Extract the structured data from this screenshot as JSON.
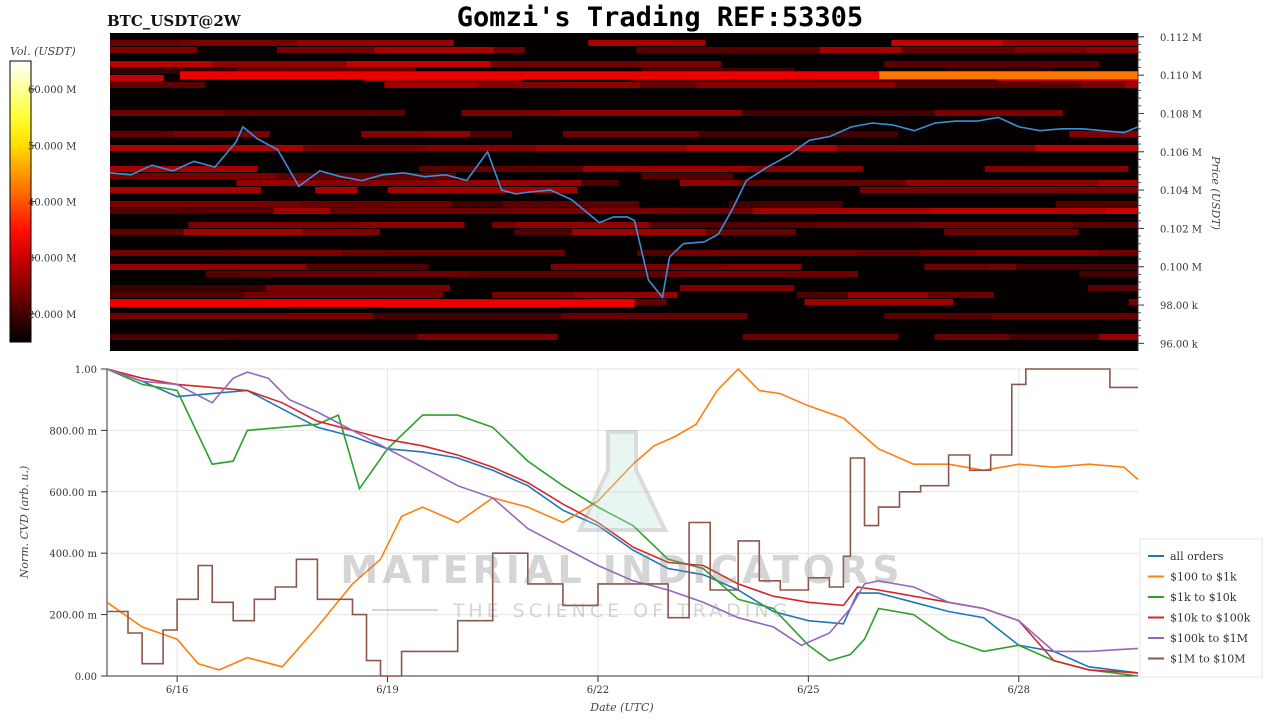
{
  "header": {
    "symbol": "BTC_USDT@2W",
    "title": "Gomzi's Trading REF:53305"
  },
  "watermark": {
    "name": "MATERIAL INDICATORS",
    "tagline": "THE SCIENCE OF TRADING"
  },
  "colors": {
    "all_orders": "#1f77b4",
    "100_to_1k": "#ff7f0e",
    "1k_to_10k": "#2ca02c",
    "10k_to_100k": "#d62728",
    "100k_to_1m": "#9467bd",
    "1m_to_10m": "#8c564b",
    "price_line": "#3a8fd9"
  },
  "chart_data": [
    {
      "type": "heatmap",
      "title": "",
      "colorbar": {
        "label": "Vol. (USDT)",
        "ticks": [
          "60.000 M",
          "50.000 M",
          "40.000 M",
          "30.000 M",
          "20.000 M"
        ],
        "tick_values": [
          60000000,
          50000000,
          40000000,
          30000000,
          20000000
        ],
        "range": [
          15000000,
          65000000
        ],
        "colormap": "hot"
      },
      "ylabel": "Price (USDT)",
      "ylim": [
        95600,
        112200
      ],
      "y_ticks": [
        {
          "label": "0.112 M",
          "value": 112000
        },
        {
          "label": "0.110 M",
          "value": 110000
        },
        {
          "label": "0.108 M",
          "value": 108000
        },
        {
          "label": "0.106 M",
          "value": 106000
        },
        {
          "label": "0.104 M",
          "value": 104000
        },
        {
          "label": "0.102 M",
          "value": 102000
        },
        {
          "label": "0.100 M",
          "value": 100000
        },
        {
          "label": "98.00 k",
          "value": 98000
        },
        {
          "label": "96.00 k",
          "value": 96000
        }
      ],
      "xlim": [
        15.0,
        29.7
      ],
      "price_series": {
        "x": [
          15.0,
          15.3,
          15.6,
          15.9,
          16.2,
          16.5,
          16.8,
          16.9,
          17.1,
          17.4,
          17.7,
          18.0,
          18.3,
          18.6,
          18.9,
          19.2,
          19.5,
          19.8,
          20.1,
          20.4,
          20.6,
          20.8,
          21.0,
          21.3,
          21.6,
          21.8,
          22.0,
          22.2,
          22.4,
          22.5,
          22.7,
          22.9,
          23.0,
          23.2,
          23.5,
          23.7,
          23.9,
          24.1,
          24.4,
          24.7,
          25.0,
          25.3,
          25.6,
          25.9,
          26.2,
          26.5,
          26.8,
          27.1,
          27.4,
          27.7,
          28.0,
          28.3,
          28.6,
          28.9,
          29.2,
          29.5,
          29.7
        ],
        "y": [
          104900,
          104800,
          105300,
          105000,
          105500,
          105200,
          106500,
          107300,
          106700,
          106100,
          104200,
          105000,
          104700,
          104500,
          104800,
          104900,
          104700,
          104800,
          104500,
          106000,
          104000,
          103800,
          103900,
          104000,
          103500,
          102900,
          102300,
          102600,
          102600,
          102400,
          99300,
          98400,
          100500,
          101200,
          101300,
          101700,
          103000,
          104500,
          105200,
          105800,
          106600,
          106800,
          107300,
          107500,
          107400,
          107100,
          107500,
          107600,
          107600,
          107800,
          107300,
          107100,
          107200,
          107200,
          107100,
          107000,
          107300
        ]
      }
    },
    {
      "type": "line",
      "xlabel": "Date (UTC)",
      "ylabel": "Norm. CVD (arb. u.)",
      "ylim": [
        0,
        1.0
      ],
      "y_ticks": [
        {
          "label": "1.00",
          "value": 1.0
        },
        {
          "label": "800.00 m",
          "value": 0.8
        },
        {
          "label": "600.00 m",
          "value": 0.6
        },
        {
          "label": "400.00 m",
          "value": 0.4
        },
        {
          "label": "200.00 m",
          "value": 0.2
        },
        {
          "label": "0.00",
          "value": 0.0
        }
      ],
      "xlim": [
        15.0,
        29.7
      ],
      "x_ticks": [
        {
          "label": "6/16",
          "value": 16
        },
        {
          "label": "6/19",
          "value": 19
        },
        {
          "label": "6/22",
          "value": 22
        },
        {
          "label": "6/25",
          "value": 25
        },
        {
          "label": "6/28",
          "value": 28
        }
      ],
      "grid": true,
      "legend_position": "right",
      "series": [
        {
          "name": "all orders",
          "color_key": "all_orders",
          "x": [
            15.0,
            15.5,
            16.0,
            16.5,
            17.0,
            17.5,
            18.0,
            18.5,
            19.0,
            19.5,
            20.0,
            20.5,
            21.0,
            21.5,
            22.0,
            22.5,
            23.0,
            23.5,
            24.0,
            24.5,
            25.0,
            25.5,
            25.7,
            26.0,
            26.5,
            27.0,
            27.5,
            28.0,
            28.5,
            29.0,
            29.7
          ],
          "y": [
            1.0,
            0.96,
            0.91,
            0.92,
            0.93,
            0.87,
            0.81,
            0.78,
            0.74,
            0.73,
            0.71,
            0.67,
            0.62,
            0.54,
            0.49,
            0.41,
            0.35,
            0.33,
            0.28,
            0.21,
            0.18,
            0.17,
            0.27,
            0.27,
            0.24,
            0.21,
            0.19,
            0.1,
            0.08,
            0.03,
            0.01
          ]
        },
        {
          "name": "$100 to $1k",
          "color_key": "100_to_1k",
          "x": [
            15.0,
            15.5,
            16.0,
            16.3,
            16.6,
            17.0,
            17.5,
            18.0,
            18.5,
            18.9,
            19.2,
            19.5,
            20.0,
            20.5,
            21.0,
            21.5,
            22.0,
            22.5,
            22.8,
            23.1,
            23.4,
            23.7,
            24.0,
            24.3,
            24.6,
            25.0,
            25.5,
            26.0,
            26.5,
            27.0,
            27.5,
            28.0,
            28.5,
            29.0,
            29.5,
            29.7
          ],
          "y": [
            0.24,
            0.16,
            0.12,
            0.04,
            0.02,
            0.06,
            0.03,
            0.16,
            0.3,
            0.38,
            0.52,
            0.55,
            0.5,
            0.58,
            0.55,
            0.5,
            0.57,
            0.69,
            0.75,
            0.78,
            0.82,
            0.93,
            1.0,
            0.93,
            0.92,
            0.88,
            0.84,
            0.74,
            0.69,
            0.69,
            0.67,
            0.69,
            0.68,
            0.69,
            0.68,
            0.64
          ]
        },
        {
          "name": "$1k to $10k",
          "color_key": "1k_to_10k",
          "x": [
            15.0,
            15.5,
            16.0,
            16.5,
            16.8,
            17.0,
            17.5,
            18.0,
            18.3,
            18.6,
            19.0,
            19.5,
            20.0,
            20.5,
            21.0,
            21.5,
            22.0,
            22.5,
            23.0,
            23.5,
            24.0,
            24.5,
            25.0,
            25.3,
            25.6,
            25.8,
            26.0,
            26.5,
            27.0,
            27.5,
            28.0,
            28.5,
            29.0,
            29.7
          ],
          "y": [
            1.0,
            0.95,
            0.93,
            0.69,
            0.7,
            0.8,
            0.81,
            0.82,
            0.85,
            0.61,
            0.74,
            0.85,
            0.85,
            0.81,
            0.7,
            0.62,
            0.55,
            0.49,
            0.38,
            0.35,
            0.25,
            0.22,
            0.1,
            0.05,
            0.07,
            0.12,
            0.22,
            0.2,
            0.12,
            0.08,
            0.1,
            0.05,
            0.02,
            0.0
          ]
        },
        {
          "name": "$10k to $100k",
          "color_key": "10k_to_100k",
          "x": [
            15.0,
            15.5,
            16.0,
            16.5,
            17.0,
            17.5,
            18.0,
            18.5,
            19.0,
            19.5,
            20.0,
            20.5,
            21.0,
            21.5,
            22.0,
            22.5,
            23.0,
            23.5,
            24.0,
            24.5,
            25.0,
            25.5,
            25.7,
            26.0,
            26.5,
            27.0,
            27.5,
            28.0,
            28.5,
            29.0,
            29.7
          ],
          "y": [
            1.0,
            0.97,
            0.95,
            0.94,
            0.93,
            0.89,
            0.83,
            0.8,
            0.77,
            0.75,
            0.72,
            0.68,
            0.63,
            0.56,
            0.5,
            0.42,
            0.37,
            0.36,
            0.3,
            0.26,
            0.24,
            0.23,
            0.29,
            0.28,
            0.26,
            0.24,
            0.22,
            0.18,
            0.05,
            0.02,
            0.01
          ]
        },
        {
          "name": "$100k to $1M",
          "color_key": "100k_to_1m",
          "x": [
            15.0,
            15.5,
            16.0,
            16.5,
            16.8,
            17.0,
            17.3,
            17.6,
            18.0,
            18.5,
            19.0,
            19.5,
            20.0,
            20.5,
            21.0,
            21.5,
            22.0,
            22.5,
            23.0,
            23.5,
            24.0,
            24.5,
            24.9,
            25.3,
            25.6,
            25.8,
            26.0,
            26.5,
            27.0,
            27.5,
            28.0,
            28.5,
            29.0,
            29.7
          ],
          "y": [
            1.0,
            0.96,
            0.95,
            0.89,
            0.97,
            0.99,
            0.97,
            0.9,
            0.86,
            0.8,
            0.74,
            0.68,
            0.62,
            0.58,
            0.48,
            0.42,
            0.36,
            0.31,
            0.28,
            0.24,
            0.19,
            0.16,
            0.1,
            0.14,
            0.22,
            0.3,
            0.31,
            0.29,
            0.24,
            0.22,
            0.18,
            0.08,
            0.08,
            0.09
          ]
        },
        {
          "name": "$1M to $10M",
          "color_key": "1m_to_10m",
          "x": [
            15.0,
            15.3,
            15.5,
            15.8,
            16.0,
            16.3,
            16.5,
            16.8,
            17.1,
            17.4,
            17.7,
            18.0,
            18.5,
            18.7,
            18.9,
            19.2,
            19.5,
            20.0,
            20.5,
            21.0,
            21.5,
            22.0,
            22.5,
            23.0,
            23.3,
            23.6,
            24.0,
            24.3,
            24.6,
            25.0,
            25.3,
            25.5,
            25.6,
            25.8,
            26.0,
            26.3,
            26.6,
            27.0,
            27.3,
            27.6,
            27.9,
            28.1,
            28.4,
            28.7,
            29.0,
            29.3,
            29.7
          ],
          "y": [
            0.21,
            0.14,
            0.04,
            0.15,
            0.25,
            0.36,
            0.24,
            0.18,
            0.25,
            0.29,
            0.38,
            0.25,
            0.2,
            0.05,
            0.0,
            0.08,
            0.08,
            0.18,
            0.4,
            0.3,
            0.23,
            0.3,
            0.3,
            0.19,
            0.5,
            0.28,
            0.44,
            0.31,
            0.28,
            0.32,
            0.29,
            0.39,
            0.71,
            0.49,
            0.55,
            0.6,
            0.62,
            0.72,
            0.67,
            0.72,
            0.95,
            1.0,
            1.0,
            1.0,
            1.0,
            0.94,
            0.94
          ]
        }
      ]
    }
  ]
}
